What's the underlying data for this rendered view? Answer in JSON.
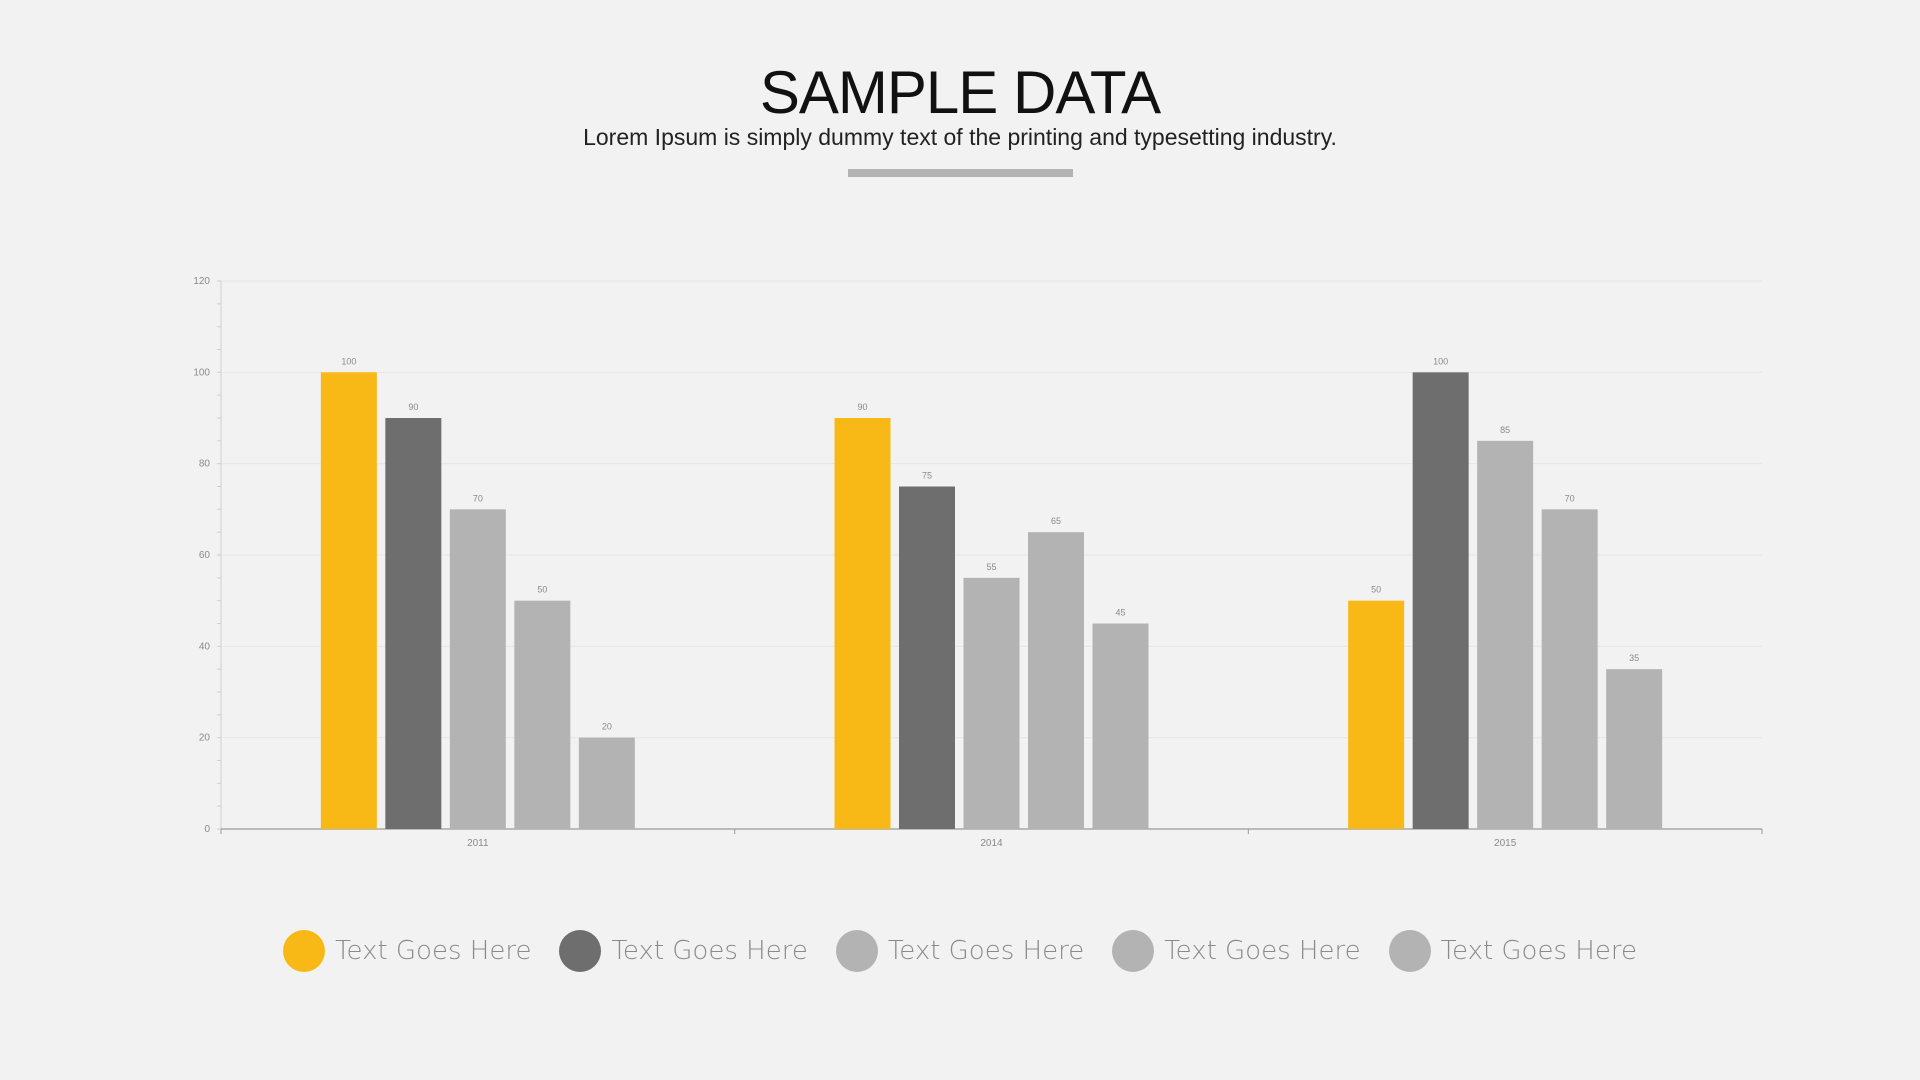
{
  "header": {
    "title": "SAMPLE DATA",
    "subtitle": "Lorem Ipsum is simply dummy text of the printing and typesetting industry."
  },
  "colors": {
    "background": "#f2f2f2",
    "accent": "#f8b916",
    "dark_gray": "#6e6e6e",
    "light_gray": "#b3b3b3",
    "divider": "#b3b3b3"
  },
  "legend": [
    {
      "label": "Text Goes Here",
      "color": "#f8b916"
    },
    {
      "label": "Text Goes Here",
      "color": "#6e6e6e"
    },
    {
      "label": "Text Goes Here",
      "color": "#b3b3b3"
    },
    {
      "label": "Text Goes Here",
      "color": "#b3b3b3"
    },
    {
      "label": "Text Goes Here",
      "color": "#b3b3b3"
    }
  ],
  "chart_data": {
    "type": "bar",
    "title": "",
    "xlabel": "",
    "ylabel": "",
    "categories": [
      "2011",
      "2014",
      "2015"
    ],
    "series": [
      {
        "name": "Text Goes Here",
        "color": "#f8b916",
        "values": [
          100,
          90,
          50
        ]
      },
      {
        "name": "Text Goes Here",
        "color": "#6e6e6e",
        "values": [
          90,
          75,
          100
        ]
      },
      {
        "name": "Text Goes Here",
        "color": "#b3b3b3",
        "values": [
          70,
          55,
          85
        ]
      },
      {
        "name": "Text Goes Here",
        "color": "#b3b3b3",
        "values": [
          50,
          65,
          70
        ]
      },
      {
        "name": "Text Goes Here",
        "color": "#b3b3b3",
        "values": [
          20,
          45,
          35
        ]
      }
    ],
    "ylim": [
      0,
      120
    ],
    "yticks": [
      0,
      20,
      40,
      60,
      80,
      100,
      120
    ],
    "grid": true,
    "data_labels": true,
    "legend_position": "bottom"
  }
}
